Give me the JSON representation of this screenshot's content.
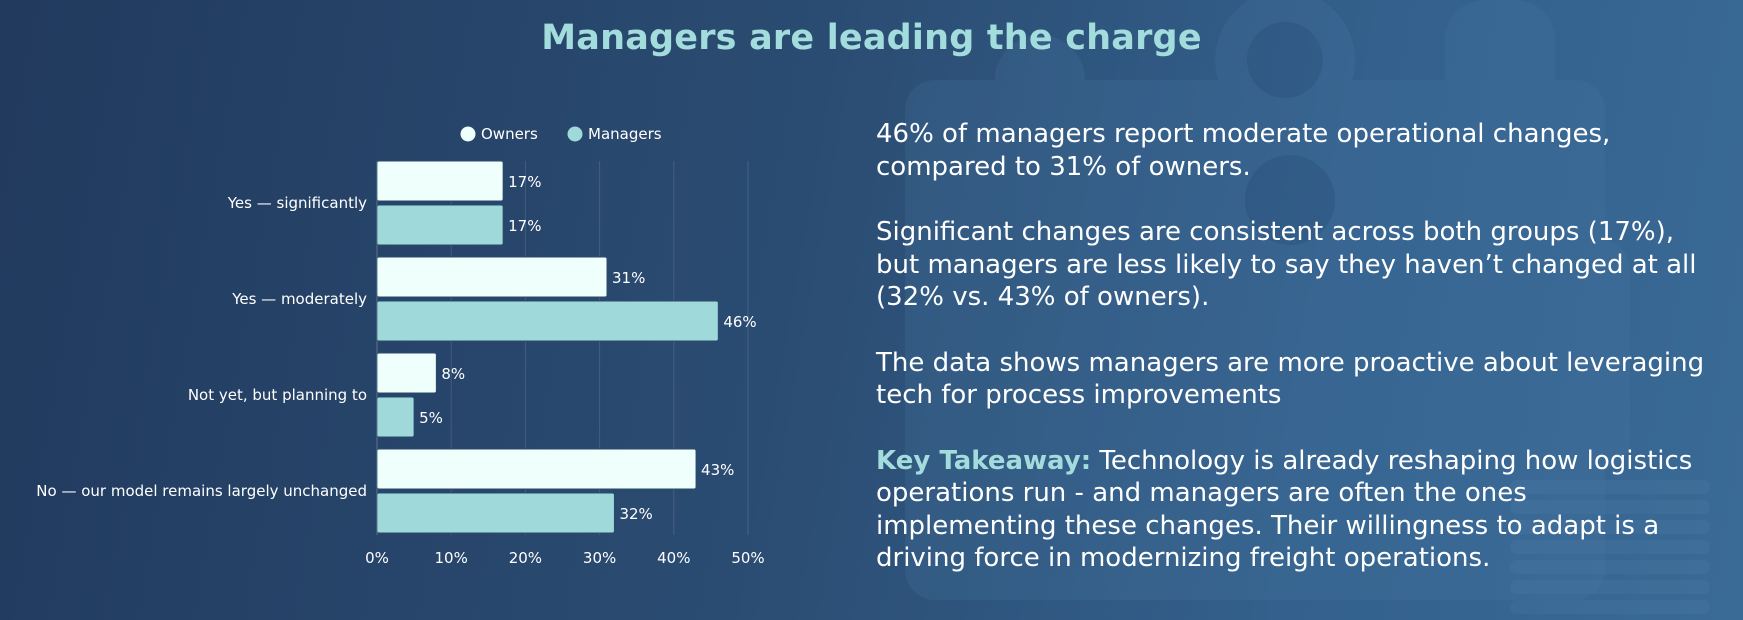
{
  "title": "Managers are leading the charge",
  "chart_data": {
    "type": "bar",
    "orientation": "horizontal",
    "categories": [
      "Yes — significantly",
      "Yes — moderately",
      "Not yet, but planning to",
      "No — our model remains largely unchanged"
    ],
    "series": [
      {
        "name": "Owners",
        "color": "#effffb",
        "values": [
          17,
          31,
          8,
          43
        ]
      },
      {
        "name": "Managers",
        "color": "#a0d9da",
        "values": [
          17,
          46,
          5,
          32
        ]
      }
    ],
    "value_suffix": "%",
    "xlim": [
      0,
      50
    ],
    "xticks": [
      0,
      10,
      20,
      30,
      40,
      50
    ],
    "xtick_labels": [
      "0%",
      "10%",
      "20%",
      "30%",
      "40%",
      "50%"
    ],
    "legend_position": "top-center",
    "grid": true
  },
  "text": {
    "p1": "46% of managers report moderate operational changes, compared to 31% of owners.",
    "p2": "Significant changes are consistent across both groups (17%), but managers are less likely to say they haven’t changed at all (32% vs. 43% of owners).",
    "p3": "The data shows managers are more proactive about leveraging tech for process improvements",
    "key_takeaway_label": "Key Takeaway:",
    "key_takeaway_text": " Technology is already reshaping how logistics operations run - and managers are often the ones implementing these changes. Their willingness to adapt is a driving force in modernizing freight operations."
  },
  "colors": {
    "accent": "#a3dcdc",
    "owners": "#effffb",
    "managers": "#a0d9da"
  }
}
